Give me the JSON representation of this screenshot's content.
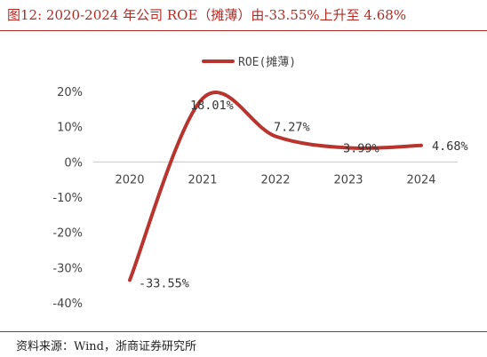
{
  "title": "图12:   2020-2024 年公司 ROE（摊薄）由-33.55%上升至 4.68%",
  "source": "资料来源：Wind，浙商证券研究所",
  "chart_data": {
    "type": "line",
    "x": [
      "2020",
      "2021",
      "2022",
      "2023",
      "2024"
    ],
    "series": [
      {
        "name": "ROE(摊薄)",
        "values": [
          -33.55,
          18.01,
          7.27,
          3.99,
          4.68
        ],
        "color": "#b8352f"
      }
    ],
    "data_labels": [
      "-33.55%",
      "18.01%",
      "7.27%",
      "3.99%",
      "4.68%"
    ],
    "yticks": [
      "20%",
      "10%",
      "0%",
      "-10%",
      "-20%",
      "-30%",
      "-40%"
    ],
    "ylim": [
      -40,
      20
    ],
    "legend": "top-center",
    "grid": false
  }
}
